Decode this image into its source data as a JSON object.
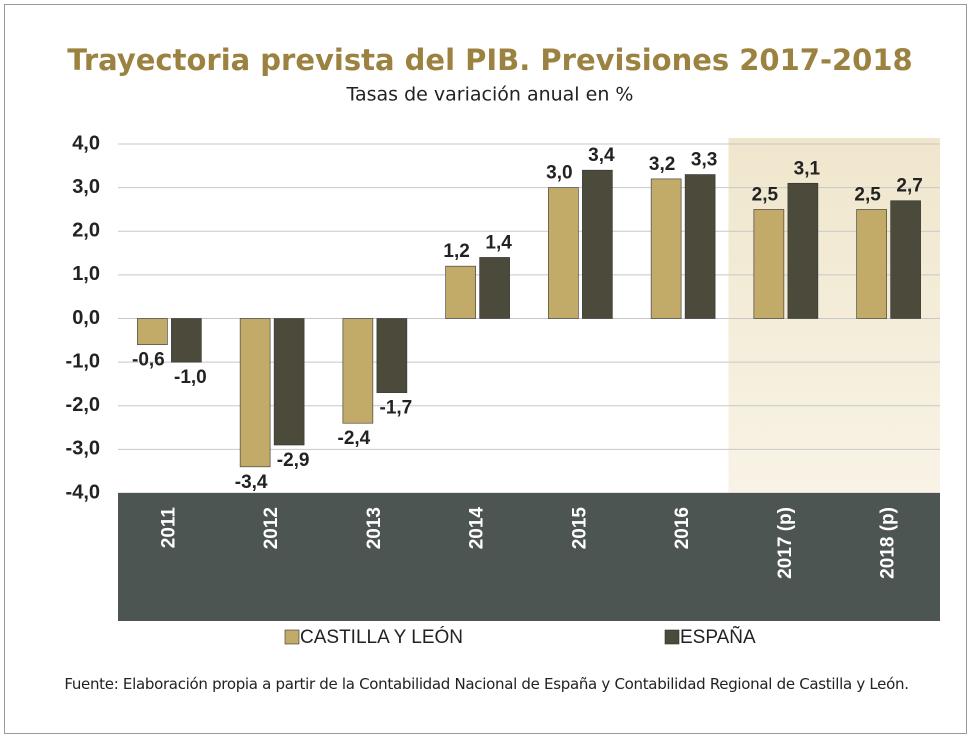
{
  "chart_data": {
    "type": "bar",
    "title": "Trayectoria prevista del PIB. Previsiones 2017-2018",
    "subtitle": "Tasas de variación anual en %",
    "categories": [
      "2011",
      "2012",
      "2013",
      "2014",
      "2015",
      "2016",
      "2017 (p)",
      "2018 (p)"
    ],
    "series": [
      {
        "name": "CASTILLA Y LEÓN",
        "color": "#c2aa68",
        "values": [
          -0.6,
          -3.4,
          -2.4,
          1.2,
          3.0,
          3.2,
          2.5,
          2.5
        ],
        "value_labels": [
          "-0,6",
          "-3,4",
          "-2,4",
          "1,2",
          "3,0",
          "3,2",
          "2,5",
          "2,5"
        ]
      },
      {
        "name": "ESPAÑA",
        "color": "#4b4a3b",
        "values": [
          -1.0,
          -2.9,
          -1.7,
          1.4,
          3.4,
          3.3,
          3.1,
          2.7
        ],
        "value_labels": [
          "-1,0",
          "-2,9",
          "-1,7",
          "1,4",
          "3,4",
          "3,3",
          "3,1",
          "2,7"
        ]
      }
    ],
    "ylim": [
      -4,
      4
    ],
    "yticks": [
      {
        "value": -4,
        "label": "-4,0"
      },
      {
        "value": -3,
        "label": "-3,0"
      },
      {
        "value": -2,
        "label": "-2,0"
      },
      {
        "value": -1,
        "label": "-1,0"
      },
      {
        "value": 0,
        "label": "0,0"
      },
      {
        "value": 1,
        "label": "1,0"
      },
      {
        "value": 2,
        "label": "2,0"
      },
      {
        "value": 3,
        "label": "3,0"
      },
      {
        "value": 4,
        "label": "4,0"
      }
    ],
    "grid": true,
    "legend": "bottom",
    "source": "Fuente: Elaboración propia a partir de la Contabilidad Nacional de España y Contabilidad Regional de Castilla y León."
  }
}
